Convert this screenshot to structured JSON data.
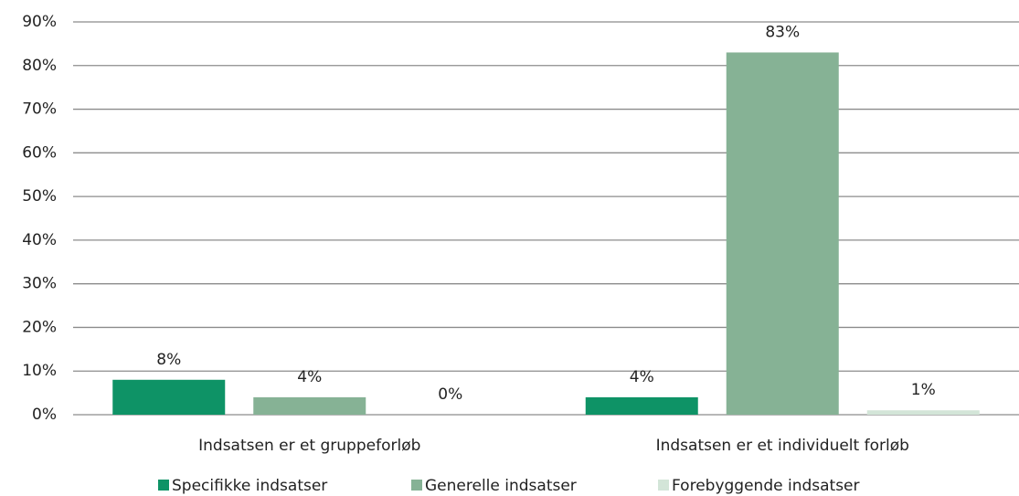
{
  "chart_data": {
    "type": "bar",
    "categories": [
      "Indsatsen er et gruppeforløb",
      "Indsatsen er et individuelt forløb"
    ],
    "series": [
      {
        "name": "Specifikke indsatser",
        "color": "#0e9366",
        "values": [
          8,
          4
        ],
        "value_labels": [
          "8%",
          "4%"
        ]
      },
      {
        "name": "Generelle indsatser",
        "color": "#86b295",
        "values": [
          4,
          83
        ],
        "value_labels": [
          "4%",
          "83%"
        ]
      },
      {
        "name": "Forebyggende indsatser",
        "color": "#d3e5d8",
        "values": [
          0,
          1
        ],
        "value_labels": [
          "0%",
          "1%"
        ]
      }
    ],
    "ylim": [
      0,
      90
    ],
    "yticks": [
      {
        "value": 0,
        "label": "0%"
      },
      {
        "value": 10,
        "label": "10%"
      },
      {
        "value": 20,
        "label": "20%"
      },
      {
        "value": 30,
        "label": "30%"
      },
      {
        "value": 40,
        "label": "40%"
      },
      {
        "value": 50,
        "label": "50%"
      },
      {
        "value": 60,
        "label": "60%"
      },
      {
        "value": 70,
        "label": "70%"
      },
      {
        "value": 80,
        "label": "80%"
      },
      {
        "value": 90,
        "label": "90%"
      }
    ],
    "grid": true,
    "legend": "bottom"
  }
}
